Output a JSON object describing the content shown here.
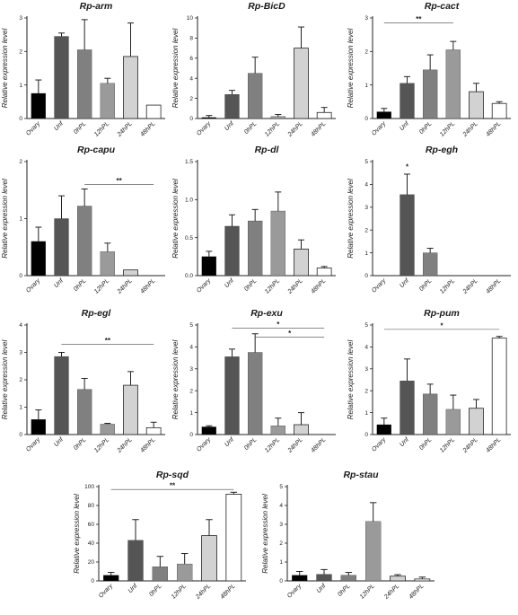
{
  "chart_data": [
    {
      "type": "bar",
      "title": "Rp-arm",
      "ylabel": "Relative expression level",
      "ylim": [
        0,
        3
      ],
      "yticks": [
        0,
        1,
        2,
        3
      ],
      "categories": [
        "Ovary",
        "Unf",
        "0hPL",
        "12hPL",
        "24hPL",
        "48hPL"
      ],
      "values": [
        0.75,
        2.45,
        2.05,
        1.05,
        1.85,
        0.4
      ],
      "errors": [
        0.4,
        0.1,
        0.9,
        0.15,
        1.0,
        0
      ],
      "significance": []
    },
    {
      "type": "bar",
      "title": "Rp-BicD",
      "ylabel": "Relative expression level",
      "ylim": [
        0,
        10
      ],
      "yticks": [
        0,
        2,
        4,
        6,
        8,
        10
      ],
      "categories": [
        "Ovary",
        "Unf",
        "0hPL",
        "12hPL",
        "24hPL",
        "48hPL"
      ],
      "values": [
        0.1,
        2.4,
        4.5,
        0.2,
        7.0,
        0.6
      ],
      "errors": [
        0.2,
        0.4,
        1.6,
        0.2,
        2.1,
        0.5
      ],
      "significance": []
    },
    {
      "type": "bar",
      "title": "Rp-cact",
      "ylabel": "Relative expression level",
      "ylim": [
        0,
        3
      ],
      "yticks": [
        0,
        1,
        2,
        3
      ],
      "categories": [
        "Ovary",
        "Unf",
        "0hPL",
        "12hPL",
        "24hPL",
        "48hPL"
      ],
      "values": [
        0.2,
        1.05,
        1.45,
        2.05,
        0.8,
        0.45
      ],
      "errors": [
        0.1,
        0.2,
        0.45,
        0.25,
        0.25,
        0.05
      ],
      "significance": [
        {
          "from": 0,
          "to": 3,
          "label": "**",
          "y": 2.85
        }
      ]
    },
    {
      "type": "bar",
      "title": "Rp-capu",
      "ylabel": "Relative expression level",
      "ylim": [
        0,
        2
      ],
      "yticks": [
        0,
        1,
        2
      ],
      "categories": [
        "Ovary",
        "Unf",
        "0hPL",
        "12hPL",
        "24hPL",
        "48hPL"
      ],
      "values": [
        0.6,
        1.0,
        1.22,
        0.42,
        0.1,
        0
      ],
      "errors": [
        0.25,
        0.4,
        0.3,
        0.15,
        0,
        0
      ],
      "significance": [
        {
          "from": 2,
          "to": 5,
          "label": "**",
          "y": 1.6
        }
      ]
    },
    {
      "type": "bar",
      "title": "Rp-dl",
      "ylabel": "Relative expression level",
      "ylim": [
        0,
        1.5
      ],
      "yticks": [
        0,
        0.5,
        1.0,
        1.5
      ],
      "categories": [
        "Ovary",
        "Unf",
        "0hPL",
        "12hPL",
        "24hPL",
        "48hPL"
      ],
      "values": [
        0.25,
        0.65,
        0.72,
        0.85,
        0.35,
        0.1
      ],
      "errors": [
        0.07,
        0.15,
        0.15,
        0.25,
        0.12,
        0.02
      ],
      "significance": []
    },
    {
      "type": "bar",
      "title": "Rp-egh",
      "ylabel": "Relative expression level",
      "ylim": [
        0,
        5
      ],
      "yticks": [
        0,
        1,
        2,
        3,
        4,
        5
      ],
      "categories": [
        "Ovary",
        "Unf",
        "0hPL",
        "12hPL",
        "24hPL",
        "48hPL"
      ],
      "values": [
        0,
        3.55,
        1.0,
        0,
        0,
        0
      ],
      "errors": [
        0,
        0.9,
        0.2,
        0,
        0,
        0
      ],
      "significance": [
        {
          "from": 1,
          "to": 1,
          "label": "*",
          "y": 4.6
        }
      ]
    },
    {
      "type": "bar",
      "title": "Rp-egl",
      "ylabel": "Relative expression level",
      "ylim": [
        0,
        4
      ],
      "yticks": [
        0,
        1,
        2,
        3,
        4
      ],
      "categories": [
        "Ovary",
        "Unf",
        "0hPL",
        "12hPL",
        "24hPL",
        "48hPL"
      ],
      "values": [
        0.55,
        2.85,
        1.65,
        0.38,
        1.8,
        0.25
      ],
      "errors": [
        0.35,
        0.15,
        0.4,
        0.03,
        0.5,
        0.2
      ],
      "significance": [
        {
          "from": 1,
          "to": 5,
          "label": "**",
          "y": 3.3
        }
      ]
    },
    {
      "type": "bar",
      "title": "Rp-exu",
      "ylabel": "Relative expression level",
      "ylim": [
        0,
        5
      ],
      "yticks": [
        0,
        1,
        2,
        3,
        4,
        5
      ],
      "categories": [
        "Ovary",
        "Unf",
        "0hPL",
        "12hPL",
        "24hPL",
        "48hPL"
      ],
      "values": [
        0.35,
        3.55,
        3.75,
        0.4,
        0.45,
        0
      ],
      "errors": [
        0.05,
        0.35,
        0.85,
        0.35,
        0.55,
        0
      ],
      "significance": [
        {
          "from": 1,
          "to": 5,
          "label": "*",
          "y": 4.85
        },
        {
          "from": 2,
          "to": 5,
          "label": "*",
          "y": 4.45
        }
      ]
    },
    {
      "type": "bar",
      "title": "Rp-pum",
      "ylabel": "Relative expression level",
      "ylim": [
        0,
        5
      ],
      "yticks": [
        0,
        1,
        2,
        3,
        4,
        5
      ],
      "categories": [
        "Ovary",
        "Unf",
        "0hPL",
        "12hPL",
        "24hPL",
        "48hPL"
      ],
      "values": [
        0.45,
        2.45,
        1.85,
        1.15,
        1.2,
        4.4
      ],
      "errors": [
        0.3,
        1.0,
        0.45,
        0.65,
        0.4,
        0.08
      ],
      "significance": [
        {
          "from": 0,
          "to": 5,
          "label": "*",
          "y": 4.8
        }
      ]
    },
    {
      "type": "bar",
      "title": "Rp-sqd",
      "ylabel": "Relative expression level",
      "ylim": [
        0,
        100
      ],
      "yticks": [
        0,
        20,
        40,
        60,
        80,
        100
      ],
      "categories": [
        "Ovary",
        "Unf",
        "0hPL",
        "12hPL",
        "24hPL",
        "48hPL"
      ],
      "values": [
        6,
        43,
        15,
        18,
        48,
        92
      ],
      "errors": [
        3,
        22,
        11,
        11,
        17,
        2
      ],
      "significance": [
        {
          "from": 0,
          "to": 5,
          "label": "**",
          "y": 97
        }
      ]
    },
    {
      "type": "bar",
      "title": "Rp-stau",
      "ylabel": "Relative expression level",
      "ylim": [
        0,
        5
      ],
      "yticks": [
        0,
        1,
        2,
        3,
        4,
        5
      ],
      "categories": [
        "Ovary",
        "Unf",
        "0hPL",
        "12hPL",
        "24hPL",
        "48hPL"
      ],
      "values": [
        0.3,
        0.35,
        0.3,
        3.15,
        0.25,
        0.1
      ],
      "errors": [
        0.2,
        0.25,
        0.15,
        1.0,
        0.08,
        0.1
      ],
      "significance": []
    }
  ],
  "colors": {
    "bars": [
      "#000000",
      "#555555",
      "#808080",
      "#9a9a9a",
      "#d2d2d2",
      "#ffffff"
    ],
    "axis": "#222222"
  }
}
